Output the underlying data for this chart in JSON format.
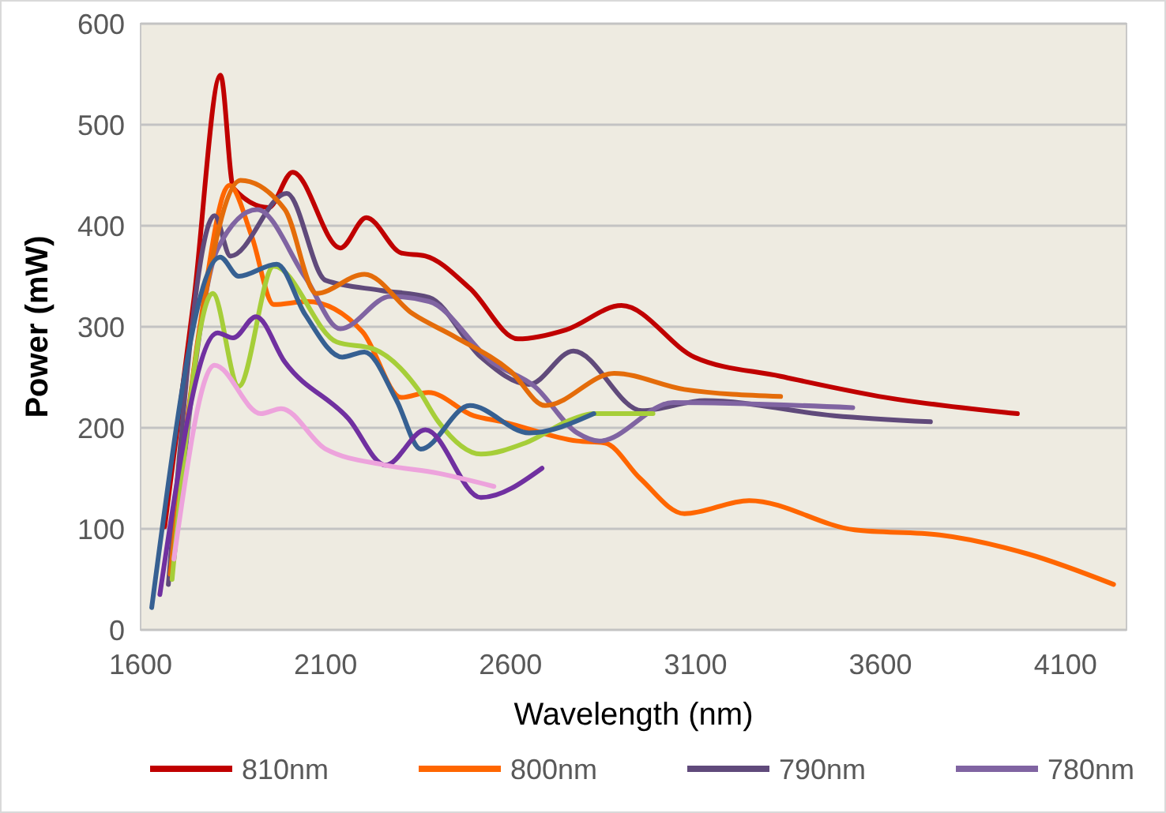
{
  "chart_data": {
    "type": "line",
    "xlabel": "Wavelength (nm)",
    "ylabel": "Power (mW)",
    "xlim": [
      1600,
      4265
    ],
    "xticks": [
      1600,
      2100,
      2600,
      3100,
      3600,
      4100
    ],
    "ylim": [
      0,
      600
    ],
    "yticks": [
      0,
      100,
      200,
      300,
      400,
      500,
      600
    ],
    "grid": "y",
    "legend": "bottom",
    "marker": "none",
    "line_style": "solid",
    "series": [
      {
        "name": "810nm",
        "color": "#c00000",
        "x": [
          1665,
          1745,
          1816,
          1851,
          1946,
          2011,
          2140,
          2210,
          2305,
          2370,
          2490,
          2620,
          2750,
          2900,
          3097,
          3330,
          3615,
          3970
        ],
        "values": [
          102,
          330,
          549,
          437,
          418,
          453,
          378,
          408,
          373,
          370,
          338,
          288,
          297,
          321,
          270,
          251,
          230,
          214
        ]
      },
      {
        "name": "800nm",
        "color": "#ff6600",
        "x": [
          1680,
          1760,
          1840,
          1900,
          1960,
          2050,
          2200,
          2305,
          2378,
          2500,
          2578,
          2780,
          2855,
          2950,
          3070,
          3245,
          3530,
          3760,
          4000,
          4230
        ],
        "values": [
          60,
          300,
          440,
          390,
          322,
          325,
          295,
          230,
          235,
          212,
          206,
          187,
          185,
          150,
          115,
          128,
          99,
          94,
          75,
          45
        ]
      },
      {
        "name": "790nm",
        "color": "#604a7b",
        "x": [
          1675,
          1800,
          1843,
          1995,
          2100,
          2250,
          2380,
          2520,
          2650,
          2770,
          2955,
          3125,
          3475,
          3735
        ],
        "values": [
          45,
          410,
          370,
          432,
          346,
          336,
          329,
          270,
          243,
          276,
          217,
          227,
          212,
          206
        ]
      },
      {
        "name": "780nm",
        "color": "#8064a2",
        "x": [
          1690,
          1808,
          1915,
          2045,
          2140,
          2275,
          2380,
          2550,
          2665,
          2780,
          2840,
          3040,
          3525
        ],
        "values": [
          70,
          377,
          416,
          349,
          298,
          330,
          325,
          265,
          241,
          195,
          187,
          225,
          220
        ]
      },
      {
        "color": "#e46c0a",
        "x": [
          1680,
          1770,
          1870,
          1990,
          2075,
          2205,
          2335,
          2450,
          2600,
          2694,
          2880,
          3070,
          3330
        ],
        "values": [
          55,
          320,
          445,
          416,
          333,
          352,
          313,
          290,
          256,
          222,
          254,
          238,
          231
        ]
      },
      {
        "color": "#a6ce39",
        "x": [
          1685,
          1795,
          1865,
          1960,
          2130,
          2230,
          2350,
          2405,
          2520,
          2640,
          2770,
          2825,
          2985
        ],
        "values": [
          50,
          333,
          241,
          360,
          285,
          278,
          238,
          206,
          174,
          185,
          209,
          214,
          214
        ]
      },
      {
        "color": "#366092",
        "x": [
          1630,
          1815,
          1865,
          1968,
          2045,
          2145,
          2205,
          2292,
          2357,
          2490,
          2650,
          2825
        ],
        "values": [
          22,
          369,
          350,
          362,
          312,
          270,
          275,
          227,
          179,
          222,
          195,
          214
        ]
      },
      {
        "color": "#7030a0",
        "x": [
          1652,
          1808,
          1850,
          1912,
          1990,
          2162,
          2262,
          2370,
          2520,
          2685
        ],
        "values": [
          35,
          294,
          289,
          310,
          265,
          209,
          163,
          198,
          131,
          160
        ]
      },
      {
        "color": "#eda3dc",
        "x": [
          1690,
          1800,
          1925,
          1980,
          2100,
          2262,
          2405,
          2555
        ],
        "values": [
          70,
          262,
          214,
          219,
          179,
          163,
          155,
          142
        ]
      }
    ]
  }
}
